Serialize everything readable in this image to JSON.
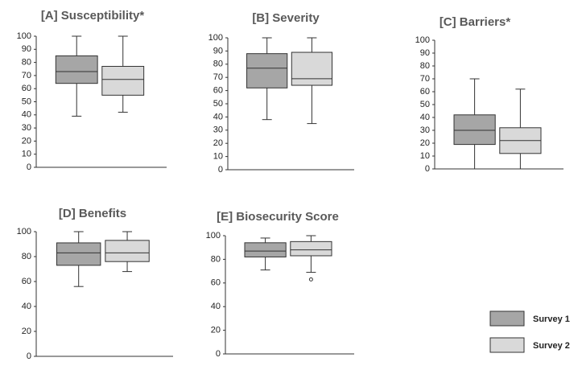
{
  "chart_data": [
    {
      "type": "box",
      "title": "[A] Susceptibility*",
      "ylim": [
        0,
        100
      ],
      "yticks": [
        0,
        10,
        20,
        30,
        40,
        50,
        60,
        70,
        80,
        90,
        100
      ],
      "series": [
        {
          "name": "Survey 1",
          "color": "#a6a6a6",
          "values": {
            "min": 39,
            "q1": 64,
            "median": 73,
            "q3": 85,
            "max": 100
          }
        },
        {
          "name": "Survey 2",
          "color": "#d9d9d9",
          "values": {
            "min": 42,
            "q1": 55,
            "median": 67,
            "q3": 77,
            "max": 100
          }
        }
      ]
    },
    {
      "type": "box",
      "title": "[B] Severity",
      "ylim": [
        0,
        100
      ],
      "yticks": [
        0,
        10,
        20,
        30,
        40,
        50,
        60,
        70,
        80,
        90,
        100
      ],
      "series": [
        {
          "color": "#a6a6a6",
          "values": {
            "min": 38,
            "q1": 62,
            "median": 77,
            "q3": 88,
            "max": 100
          }
        },
        {
          "color": "#d9d9d9",
          "values": {
            "min": 35,
            "q1": 64,
            "median": 69,
            "q3": 89,
            "max": 100
          }
        }
      ]
    },
    {
      "type": "box",
      "title": "[C] Barriers*",
      "ylim": [
        0,
        100
      ],
      "yticks": [
        0,
        10,
        20,
        30,
        40,
        50,
        60,
        70,
        80,
        90,
        100
      ],
      "series": [
        {
          "color": "#a6a6a6",
          "values": {
            "min": 0,
            "q1": 19,
            "median": 30,
            "q3": 42,
            "max": 70
          }
        },
        {
          "color": "#d9d9d9",
          "values": {
            "min": 0,
            "q1": 12,
            "median": 22,
            "q3": 32,
            "max": 62
          }
        }
      ]
    },
    {
      "type": "box",
      "title": "[D] Benefits",
      "ylim": [
        0,
        100
      ],
      "yticks": [
        0,
        20,
        40,
        60,
        80,
        100
      ],
      "series": [
        {
          "color": "#a6a6a6",
          "values": {
            "min": 56,
            "q1": 73,
            "median": 83,
            "q3": 91,
            "max": 100
          }
        },
        {
          "color": "#d9d9d9",
          "values": {
            "min": 68,
            "q1": 76,
            "median": 83,
            "q3": 93,
            "max": 100
          }
        }
      ]
    },
    {
      "type": "box",
      "title": "[E] Biosecurity Score",
      "ylim": [
        0,
        100
      ],
      "yticks": [
        0,
        20,
        40,
        60,
        80,
        100
      ],
      "series": [
        {
          "color": "#a6a6a6",
          "values": {
            "min": 71,
            "q1": 82,
            "median": 87,
            "q3": 94,
            "max": 98
          }
        },
        {
          "color": "#d9d9d9",
          "values": {
            "min": 69,
            "q1": 83,
            "median": 88,
            "q3": 95,
            "max": 100
          },
          "outliers": [
            63
          ]
        }
      ]
    }
  ]
}
